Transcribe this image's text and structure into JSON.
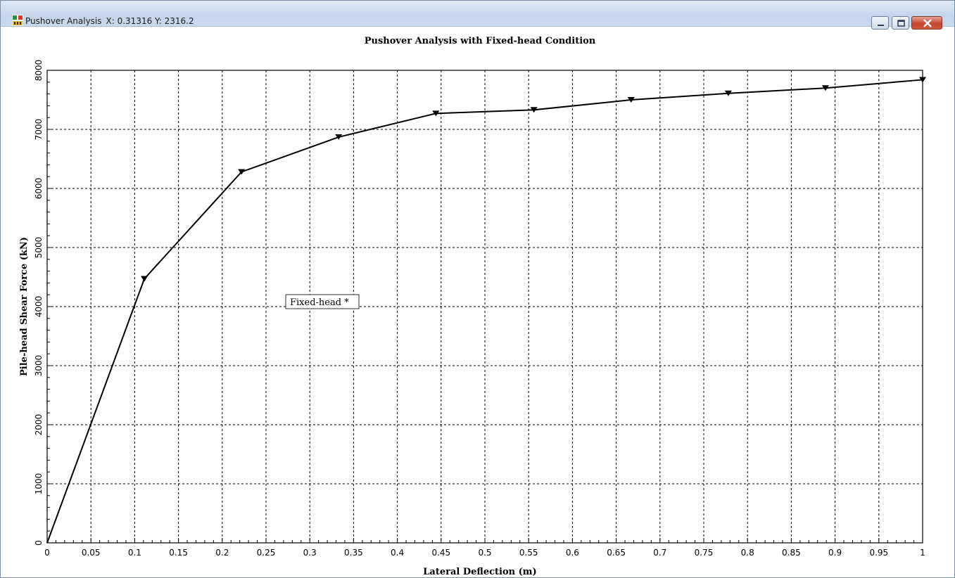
{
  "window": {
    "title": "Pushover Analysis",
    "cursor_readout": "X: 0.31316 Y: 2316.2",
    "minimize_label": "minimize",
    "maximize_label": "maximize",
    "close_label": "close"
  },
  "chart_data": {
    "type": "line",
    "title": "Pushover Analysis with Fixed-head Condition",
    "xlabel": "Lateral Deflection (m)",
    "ylabel": "Pile-head Shear Force  (kN)",
    "xlim": [
      0,
      1
    ],
    "ylim": [
      0,
      8000
    ],
    "x_ticks": [
      "0",
      "0.05",
      "0.1",
      "0.15",
      "0.2",
      "0.25",
      "0.3",
      "0.35",
      "0.4",
      "0.45",
      "0.5",
      "0.55",
      "0.6",
      "0.65",
      "0.7",
      "0.75",
      "0.8",
      "0.85",
      "0.9",
      "0.95",
      "1"
    ],
    "y_ticks": [
      "0",
      "1000",
      "2000",
      "3000",
      "4000",
      "5000",
      "6000",
      "7000",
      "8000"
    ],
    "grid": true,
    "series": [
      {
        "name": "Fixed-head *",
        "color": "#000000",
        "marker": "triangle-down",
        "x": [
          0,
          0.111,
          0.222,
          0.333,
          0.444,
          0.556,
          0.667,
          0.778,
          0.889,
          1.0
        ],
        "y": [
          0,
          4470,
          6280,
          6870,
          7270,
          7330,
          7500,
          7610,
          7700,
          7840
        ]
      }
    ],
    "legend_position": "center-left"
  }
}
